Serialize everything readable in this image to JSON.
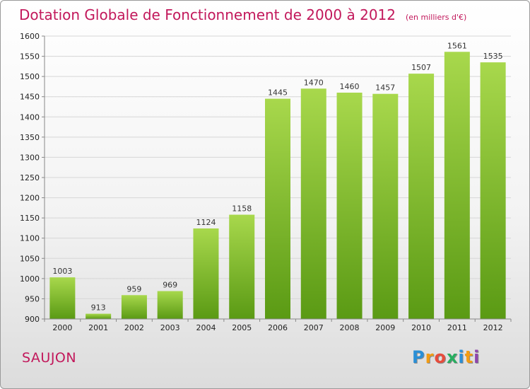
{
  "header": {
    "title": "Dotation Globale de Fonctionnement de 2000 à 2012",
    "unit": "(en milliers d'€)"
  },
  "footer": {
    "place": "SAUJON",
    "logo_letters": [
      "P",
      "r",
      "o",
      "x",
      "i",
      "t",
      "i"
    ],
    "logo_colors": [
      "#2a8fd6",
      "#f39c12",
      "#e74c3c",
      "#27ae60",
      "#2a8fd6",
      "#f39c12",
      "#8e44ad"
    ]
  },
  "chart_data": {
    "type": "bar",
    "categories": [
      "2000",
      "2001",
      "2002",
      "2003",
      "2004",
      "2005",
      "2006",
      "2007",
      "2008",
      "2009",
      "2010",
      "2011",
      "2012"
    ],
    "values": [
      1003,
      913,
      959,
      969,
      1124,
      1158,
      1445,
      1470,
      1460,
      1457,
      1507,
      1561,
      1535
    ],
    "ylim": [
      900,
      1600
    ],
    "yticks": [
      900,
      950,
      1000,
      1050,
      1100,
      1150,
      1200,
      1250,
      1300,
      1350,
      1400,
      1450,
      1500,
      1550,
      1600
    ],
    "grid": true,
    "bar_color_top": "#a8d84c",
    "bar_color_bottom": "#5a9a14"
  }
}
